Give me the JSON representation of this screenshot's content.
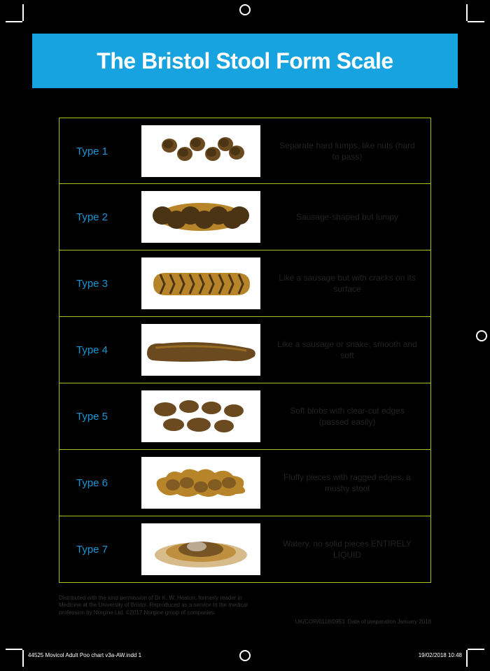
{
  "title": "The Bristol Stool Form Scale",
  "title_fontsize": 32,
  "title_bar_color": "#17a3e0",
  "table_border_color": "#a7c41a",
  "type_label_color": "#1997d4",
  "rows": [
    {
      "label": "Type 1",
      "desc": "Separate hard lumps, like nuts (hard to pass)",
      "icon": "lumps"
    },
    {
      "label": "Type 2",
      "desc": "Sausage-shaped but lumpy",
      "icon": "lumpy-sausage"
    },
    {
      "label": "Type 3",
      "desc": "Like a sausage but with cracks on its surface",
      "icon": "cracked-sausage"
    },
    {
      "label": "Type 4",
      "desc": "Like a sausage or snake, smooth and soft",
      "icon": "smooth-sausage"
    },
    {
      "label": "Type 5",
      "desc": "Soft blobs with clear-cut edges (passed easily)",
      "icon": "blobs"
    },
    {
      "label": "Type 6",
      "desc": "Fluffy pieces with ragged edges, a mushy stool",
      "icon": "mushy"
    },
    {
      "label": "Type 7",
      "desc": "Watery, no solid pieces ENTIRELY LIQUID",
      "icon": "liquid"
    }
  ],
  "footer_left": "Distributed with the kind permission of Dr K. W. Heaton; formerly reader in Medicine at the University of Bristol. Reproduced as a service to the medical profession by Norgine Ltd. ©2017 Norgine group of companies.",
  "footer_right": "UK/COR/0118/0953. Date of preparation January 2018",
  "slug_left": "44525 Movicol Adult Poo chart v3a-AW.indd   1",
  "slug_right": "19/02/2018   10:48",
  "colors": {
    "background": "#000000",
    "text_dark": "#222222",
    "stool_dark": "#4a3414",
    "stool_mid": "#6b4a20",
    "stool_light": "#b8842a"
  }
}
